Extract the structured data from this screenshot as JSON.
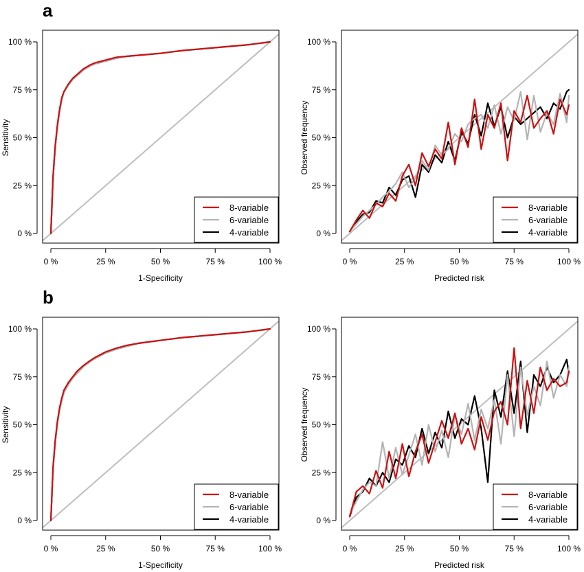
{
  "panel_letters": [
    "a",
    "b"
  ],
  "colors": {
    "8-variable": "#cc1111",
    "6-variable": "#b4b4b4",
    "4-variable": "#000000",
    "diagonal": "#bebebe"
  },
  "chart_data": [
    {
      "id": "a-roc",
      "type": "line",
      "panel": "a",
      "xlabel": "1-Specificity",
      "ylabel": "Sensitivity",
      "xlim": [
        0,
        100
      ],
      "ylim": [
        0,
        100
      ],
      "xticks": [
        "0 %",
        "25 %",
        "50 %",
        "75 %",
        "100 %"
      ],
      "yticks": [
        "0 %",
        "25 %",
        "50 %",
        "75 %",
        "100 %"
      ],
      "reference_line": "diagonal",
      "legend": {
        "position": "bottom-right",
        "entries": [
          "8-variable",
          "6-variable",
          "4-variable"
        ]
      },
      "series": [
        {
          "name": "8-variable",
          "x": [
            0,
            1,
            2,
            3,
            4,
            5,
            6,
            8,
            10,
            12,
            15,
            18,
            20,
            25,
            30,
            35,
            40,
            50,
            60,
            70,
            80,
            90,
            100
          ],
          "y": [
            0,
            30,
            46,
            57,
            65,
            71,
            74,
            78,
            81,
            83,
            86,
            88,
            89,
            90.5,
            92,
            92.5,
            93,
            94,
            95.5,
            96.5,
            97.5,
            98.5,
            100
          ]
        },
        {
          "name": "6-variable",
          "x": [
            0,
            1,
            2,
            3,
            4,
            5,
            6,
            8,
            10,
            12,
            15,
            18,
            20,
            25,
            30,
            35,
            40,
            50,
            60,
            70,
            80,
            90,
            100
          ],
          "y": [
            0,
            29,
            45,
            56,
            64,
            70,
            74,
            77.5,
            80.5,
            82.5,
            85.5,
            87.5,
            88.5,
            90,
            91.5,
            92.5,
            93,
            94,
            95.5,
            96.5,
            97.5,
            98.5,
            100
          ]
        },
        {
          "name": "4-variable",
          "x": [
            0,
            1,
            2,
            3,
            4,
            5,
            6,
            8,
            10,
            12,
            15,
            18,
            20,
            25,
            30,
            35,
            40,
            50,
            60,
            70,
            80,
            90,
            100
          ],
          "y": [
            0,
            29,
            45,
            56,
            64,
            70,
            74,
            77.5,
            80.5,
            82.5,
            85.5,
            87.5,
            88.5,
            90,
            91.5,
            92.5,
            93,
            94,
            95.5,
            96.5,
            97.5,
            98.5,
            100
          ]
        }
      ]
    },
    {
      "id": "a-cal",
      "type": "line",
      "panel": "a",
      "xlabel": "Predicted risk",
      "ylabel": "Observed frequency",
      "xlim": [
        0,
        100
      ],
      "ylim": [
        0,
        100
      ],
      "xticks": [
        "0 %",
        "25 %",
        "50 %",
        "75 %",
        "100 %"
      ],
      "yticks": [
        "0 %",
        "25 %",
        "50 %",
        "75 %",
        "100 %"
      ],
      "reference_line": "diagonal",
      "legend": {
        "position": "bottom-right",
        "entries": [
          "8-variable",
          "6-variable",
          "4-variable"
        ]
      },
      "series": [
        {
          "name": "8-variable",
          "x": [
            0,
            3,
            6,
            9,
            12,
            15,
            18,
            21,
            24,
            27,
            30,
            33,
            36,
            39,
            42,
            45,
            48,
            51,
            54,
            57,
            60,
            63,
            66,
            69,
            72,
            75,
            78,
            81,
            84,
            87,
            90,
            93,
            96,
            99,
            100
          ],
          "y": [
            1,
            7,
            12,
            8,
            16,
            14,
            21,
            17,
            30,
            36,
            25,
            42,
            35,
            44,
            39,
            58,
            36,
            55,
            45,
            70,
            44,
            62,
            55,
            68,
            38,
            64,
            58,
            72,
            55,
            60,
            64,
            52,
            70,
            62,
            67
          ]
        },
        {
          "name": "6-variable",
          "x": [
            0,
            3,
            6,
            9,
            12,
            15,
            18,
            21,
            24,
            27,
            30,
            33,
            36,
            39,
            42,
            45,
            48,
            51,
            54,
            57,
            60,
            63,
            66,
            69,
            72,
            75,
            78,
            81,
            84,
            87,
            90,
            93,
            96,
            99,
            100
          ],
          "y": [
            1,
            5,
            9,
            12,
            15,
            19,
            22,
            26,
            32,
            24,
            29,
            38,
            33,
            46,
            41,
            44,
            52,
            48,
            57,
            60,
            62,
            55,
            67,
            52,
            66,
            59,
            74,
            49,
            72,
            53,
            63,
            57,
            73,
            58,
            72
          ]
        },
        {
          "name": "4-variable",
          "x": [
            0,
            3,
            6,
            9,
            12,
            15,
            18,
            21,
            24,
            27,
            30,
            33,
            36,
            39,
            42,
            45,
            48,
            51,
            54,
            57,
            60,
            63,
            66,
            69,
            72,
            75,
            78,
            81,
            84,
            87,
            90,
            93,
            96,
            99,
            100
          ],
          "y": [
            1,
            6,
            10,
            11,
            17,
            16,
            24,
            20,
            28,
            30,
            19,
            36,
            32,
            41,
            37,
            48,
            38,
            53,
            47,
            62,
            51,
            68,
            56,
            66,
            50,
            61,
            57,
            60,
            63,
            66,
            60,
            68,
            65,
            74,
            75
          ]
        }
      ]
    },
    {
      "id": "b-roc",
      "type": "line",
      "panel": "b",
      "xlabel": "1-Specificity",
      "ylabel": "Sensitivity",
      "xlim": [
        0,
        100
      ],
      "ylim": [
        0,
        100
      ],
      "xticks": [
        "0 %",
        "25 %",
        "50 %",
        "75 %",
        "100 %"
      ],
      "yticks": [
        "0 %",
        "25 %",
        "50 %",
        "75 %",
        "100 %"
      ],
      "reference_line": "diagonal",
      "legend": {
        "position": "bottom-right",
        "entries": [
          "8-variable",
          "6-variable",
          "4-variable"
        ]
      },
      "series": [
        {
          "name": "8-variable",
          "x": [
            0,
            1,
            2,
            3,
            4,
            5,
            6,
            8,
            10,
            12,
            15,
            18,
            20,
            25,
            30,
            35,
            40,
            50,
            60,
            70,
            80,
            90,
            100
          ],
          "y": [
            0,
            28,
            42,
            52,
            59,
            64,
            68,
            72,
            75,
            78,
            81,
            83.5,
            85,
            88,
            90,
            91.5,
            92.5,
            94,
            95.5,
            96.5,
            97.5,
            98.5,
            100
          ]
        },
        {
          "name": "6-variable",
          "x": [
            0,
            1,
            2,
            3,
            4,
            5,
            6,
            8,
            10,
            12,
            15,
            18,
            20,
            25,
            30,
            35,
            40,
            50,
            60,
            70,
            80,
            90,
            100
          ],
          "y": [
            0,
            27,
            41,
            51,
            58,
            63,
            67,
            71,
            74.5,
            77,
            80.5,
            83,
            84.5,
            87.5,
            89.5,
            91,
            92.5,
            94,
            95.5,
            96.5,
            97.5,
            98.5,
            100
          ]
        },
        {
          "name": "4-variable",
          "x": [
            0,
            1,
            2,
            3,
            4,
            5,
            6,
            8,
            10,
            12,
            15,
            18,
            20,
            25,
            30,
            35,
            40,
            50,
            60,
            70,
            80,
            90,
            100
          ],
          "y": [
            0,
            27,
            41,
            51,
            58,
            63,
            67,
            71,
            74.5,
            77,
            80.5,
            83,
            84.5,
            87.5,
            89.5,
            91,
            92.5,
            94,
            95.5,
            96.5,
            97.5,
            98.5,
            100
          ]
        }
      ]
    },
    {
      "id": "b-cal",
      "type": "line",
      "panel": "b",
      "xlabel": "Predicted risk",
      "ylabel": "Observed frequency",
      "xlim": [
        0,
        100
      ],
      "ylim": [
        0,
        100
      ],
      "xticks": [
        "0 %",
        "25 %",
        "50 %",
        "75 %",
        "100 %"
      ],
      "yticks": [
        "0 %",
        "25 %",
        "50 %",
        "75 %",
        "100 %"
      ],
      "reference_line": "diagonal",
      "legend": {
        "position": "bottom-right",
        "entries": [
          "8-variable",
          "6-variable",
          "4-variable"
        ]
      },
      "series": [
        {
          "name": "8-variable",
          "x": [
            0,
            3,
            6,
            9,
            12,
            15,
            18,
            21,
            24,
            27,
            30,
            33,
            36,
            39,
            42,
            45,
            48,
            51,
            54,
            57,
            60,
            63,
            66,
            69,
            72,
            75,
            78,
            81,
            84,
            87,
            90,
            93,
            96,
            99,
            100
          ],
          "y": [
            2,
            15,
            18,
            14,
            26,
            17,
            36,
            22,
            40,
            23,
            36,
            45,
            30,
            41,
            52,
            43,
            56,
            40,
            48,
            37,
            54,
            42,
            57,
            62,
            50,
            90,
            48,
            73,
            56,
            80,
            68,
            74,
            70,
            72,
            78
          ]
        },
        {
          "name": "6-variable",
          "x": [
            0,
            3,
            6,
            9,
            12,
            15,
            18,
            21,
            24,
            27,
            30,
            33,
            36,
            39,
            42,
            45,
            48,
            51,
            54,
            57,
            60,
            63,
            66,
            69,
            72,
            75,
            78,
            81,
            84,
            87,
            90,
            93,
            96,
            99,
            100
          ],
          "y": [
            3,
            10,
            16,
            20,
            18,
            41,
            22,
            38,
            24,
            34,
            45,
            29,
            50,
            36,
            47,
            33,
            55,
            45,
            61,
            42,
            58,
            48,
            63,
            40,
            76,
            44,
            80,
            55,
            70,
            60,
            83,
            64,
            76,
            70,
            80
          ]
        },
        {
          "name": "4-variable",
          "x": [
            0,
            3,
            6,
            9,
            12,
            15,
            18,
            21,
            24,
            27,
            30,
            33,
            36,
            39,
            42,
            45,
            48,
            51,
            54,
            57,
            60,
            63,
            66,
            69,
            72,
            75,
            78,
            81,
            84,
            87,
            90,
            93,
            96,
            99,
            100
          ],
          "y": [
            2,
            12,
            15,
            22,
            18,
            25,
            20,
            32,
            29,
            39,
            33,
            48,
            35,
            46,
            38,
            57,
            43,
            53,
            50,
            65,
            48,
            20,
            68,
            54,
            78,
            56,
            83,
            46,
            76,
            70,
            80,
            72,
            76,
            84,
            77
          ]
        }
      ]
    }
  ]
}
